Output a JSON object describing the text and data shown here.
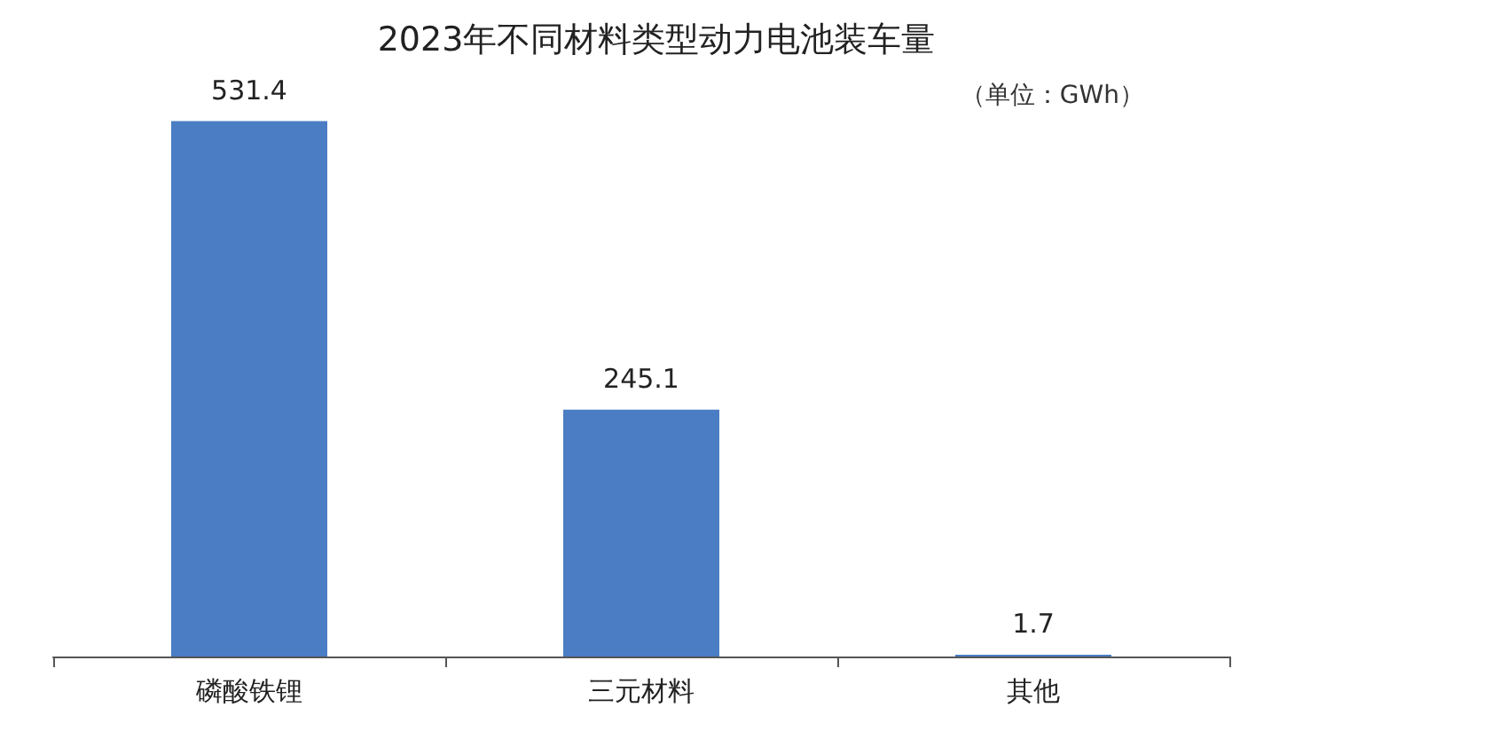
{
  "chart_data": {
    "type": "bar",
    "title": "2023年不同材料类型动力电池装车量",
    "annotations": [
      "（单位：GWh）"
    ],
    "categories": [
      "磷酸铁锂",
      "三元材料",
      "其他"
    ],
    "values": [
      531.4,
      245.1,
      1.7
    ],
    "color": "#4a7dc4",
    "tick_labels": "x",
    "data_labels": true,
    "grid": false
  }
}
